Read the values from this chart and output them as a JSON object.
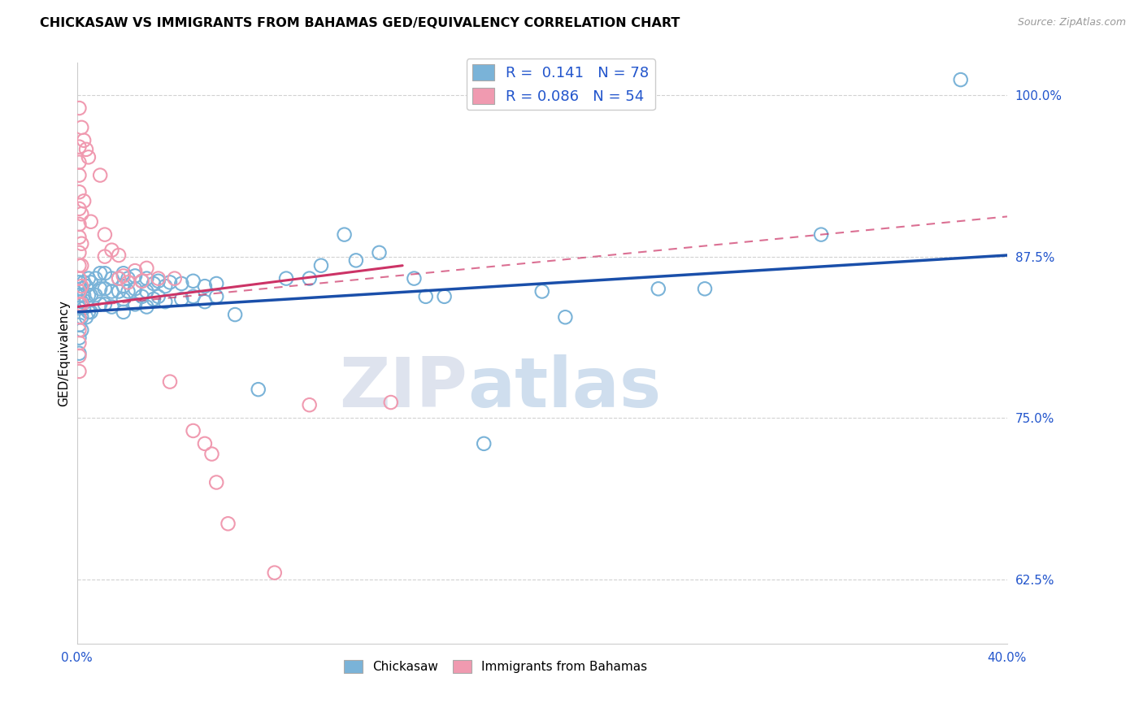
{
  "title": "CHICKASAW VS IMMIGRANTS FROM BAHAMAS GED/EQUIVALENCY CORRELATION CHART",
  "source_text": "Source: ZipAtlas.com",
  "ylabel": "GED/Equivalency",
  "watermark": "ZIPatlas",
  "r1": "0.141",
  "n1": "78",
  "r2": "0.086",
  "n2": "54",
  "xlim": [
    0.0,
    0.4
  ],
  "ylim": [
    0.575,
    1.025
  ],
  "yticks": [
    0.625,
    0.75,
    0.875,
    1.0
  ],
  "ytick_labels": [
    "62.5%",
    "75.0%",
    "87.5%",
    "100.0%"
  ],
  "xtick_positions": [
    0.0,
    0.1,
    0.2,
    0.3,
    0.4
  ],
  "xtick_labels": [
    "0.0%",
    "",
    "",
    "",
    "40.0%"
  ],
  "grid_color": "#cccccc",
  "blue_dot_color": "#7ab3d8",
  "pink_dot_color": "#f09ab0",
  "blue_line_color": "#1a4faa",
  "pink_line_color": "#cc3366",
  "tick_color": "#2255cc",
  "blue_scatter": [
    [
      0.001,
      0.855
    ],
    [
      0.001,
      0.845
    ],
    [
      0.001,
      0.835
    ],
    [
      0.001,
      0.822
    ],
    [
      0.001,
      0.812
    ],
    [
      0.001,
      0.8
    ],
    [
      0.002,
      0.85
    ],
    [
      0.002,
      0.84
    ],
    [
      0.002,
      0.828
    ],
    [
      0.002,
      0.818
    ],
    [
      0.003,
      0.855
    ],
    [
      0.003,
      0.845
    ],
    [
      0.003,
      0.835
    ],
    [
      0.004,
      0.852
    ],
    [
      0.004,
      0.84
    ],
    [
      0.004,
      0.828
    ],
    [
      0.005,
      0.858
    ],
    [
      0.005,
      0.845
    ],
    [
      0.005,
      0.832
    ],
    [
      0.006,
      0.855
    ],
    [
      0.006,
      0.845
    ],
    [
      0.006,
      0.832
    ],
    [
      0.008,
      0.858
    ],
    [
      0.008,
      0.845
    ],
    [
      0.01,
      0.862
    ],
    [
      0.01,
      0.85
    ],
    [
      0.01,
      0.838
    ],
    [
      0.012,
      0.862
    ],
    [
      0.012,
      0.85
    ],
    [
      0.012,
      0.838
    ],
    [
      0.015,
      0.858
    ],
    [
      0.015,
      0.848
    ],
    [
      0.015,
      0.836
    ],
    [
      0.018,
      0.858
    ],
    [
      0.018,
      0.848
    ],
    [
      0.02,
      0.862
    ],
    [
      0.02,
      0.852
    ],
    [
      0.02,
      0.842
    ],
    [
      0.02,
      0.832
    ],
    [
      0.022,
      0.858
    ],
    [
      0.022,
      0.848
    ],
    [
      0.025,
      0.86
    ],
    [
      0.025,
      0.85
    ],
    [
      0.025,
      0.838
    ],
    [
      0.028,
      0.856
    ],
    [
      0.028,
      0.844
    ],
    [
      0.03,
      0.858
    ],
    [
      0.03,
      0.848
    ],
    [
      0.03,
      0.836
    ],
    [
      0.033,
      0.854
    ],
    [
      0.033,
      0.842
    ],
    [
      0.035,
      0.856
    ],
    [
      0.035,
      0.844
    ],
    [
      0.038,
      0.852
    ],
    [
      0.038,
      0.84
    ],
    [
      0.04,
      0.855
    ],
    [
      0.045,
      0.854
    ],
    [
      0.045,
      0.842
    ],
    [
      0.05,
      0.856
    ],
    [
      0.05,
      0.844
    ],
    [
      0.055,
      0.852
    ],
    [
      0.055,
      0.84
    ],
    [
      0.06,
      0.854
    ],
    [
      0.06,
      0.844
    ],
    [
      0.068,
      0.83
    ],
    [
      0.078,
      0.772
    ],
    [
      0.09,
      0.858
    ],
    [
      0.1,
      0.858
    ],
    [
      0.105,
      0.868
    ],
    [
      0.115,
      0.892
    ],
    [
      0.12,
      0.872
    ],
    [
      0.13,
      0.878
    ],
    [
      0.145,
      0.858
    ],
    [
      0.15,
      0.844
    ],
    [
      0.158,
      0.844
    ],
    [
      0.175,
      0.73
    ],
    [
      0.2,
      0.848
    ],
    [
      0.21,
      0.828
    ],
    [
      0.25,
      0.85
    ],
    [
      0.27,
      0.85
    ],
    [
      0.32,
      0.892
    ],
    [
      0.38,
      1.012
    ]
  ],
  "pink_scatter": [
    [
      0.001,
      0.99
    ],
    [
      0.001,
      0.96
    ],
    [
      0.001,
      0.948
    ],
    [
      0.001,
      0.938
    ],
    [
      0.001,
      0.925
    ],
    [
      0.001,
      0.912
    ],
    [
      0.001,
      0.9
    ],
    [
      0.001,
      0.89
    ],
    [
      0.001,
      0.878
    ],
    [
      0.001,
      0.868
    ],
    [
      0.001,
      0.858
    ],
    [
      0.001,
      0.848
    ],
    [
      0.001,
      0.838
    ],
    [
      0.001,
      0.828
    ],
    [
      0.001,
      0.818
    ],
    [
      0.001,
      0.808
    ],
    [
      0.001,
      0.798
    ],
    [
      0.001,
      0.786
    ],
    [
      0.002,
      0.975
    ],
    [
      0.002,
      0.908
    ],
    [
      0.002,
      0.885
    ],
    [
      0.002,
      0.868
    ],
    [
      0.002,
      0.852
    ],
    [
      0.002,
      0.838
    ],
    [
      0.003,
      0.965
    ],
    [
      0.003,
      0.918
    ],
    [
      0.004,
      0.958
    ],
    [
      0.005,
      0.952
    ],
    [
      0.006,
      0.902
    ],
    [
      0.01,
      0.938
    ],
    [
      0.012,
      0.892
    ],
    [
      0.012,
      0.875
    ],
    [
      0.015,
      0.88
    ],
    [
      0.018,
      0.876
    ],
    [
      0.018,
      0.858
    ],
    [
      0.02,
      0.86
    ],
    [
      0.022,
      0.855
    ],
    [
      0.025,
      0.864
    ],
    [
      0.028,
      0.856
    ],
    [
      0.03,
      0.866
    ],
    [
      0.035,
      0.858
    ],
    [
      0.04,
      0.778
    ],
    [
      0.042,
      0.858
    ],
    [
      0.05,
      0.74
    ],
    [
      0.055,
      0.73
    ],
    [
      0.058,
      0.722
    ],
    [
      0.06,
      0.7
    ],
    [
      0.065,
      0.668
    ],
    [
      0.085,
      0.63
    ],
    [
      0.1,
      0.76
    ],
    [
      0.135,
      0.762
    ]
  ],
  "blue_trend_x": [
    0.0,
    0.4
  ],
  "blue_trend_y": [
    0.832,
    0.876
  ],
  "pink_trend_x": [
    0.0,
    0.14
  ],
  "pink_trend_y": [
    0.836,
    0.868
  ]
}
